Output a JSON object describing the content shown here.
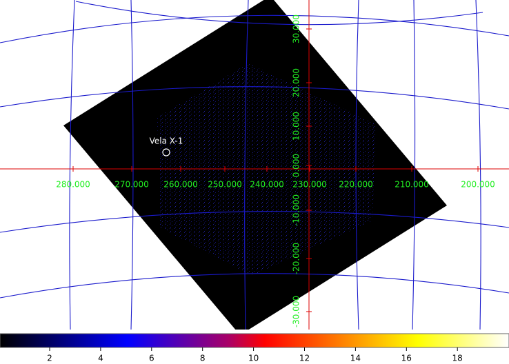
{
  "image": {
    "x_labels": [
      "280.000",
      "270.000",
      "260.000",
      "250.000",
      "240.000",
      "230.000",
      "220.000",
      "210.000",
      "200.000"
    ],
    "y_labels": [
      "30.000",
      "20.000",
      "10.000",
      "0.000",
      "-10.000",
      "-20.000",
      "-30.000"
    ],
    "source": "Vela X-1"
  },
  "colorbar": {
    "ticks": [
      "2",
      "4",
      "6",
      "8",
      "10",
      "12",
      "14",
      "16",
      "18"
    ]
  }
}
